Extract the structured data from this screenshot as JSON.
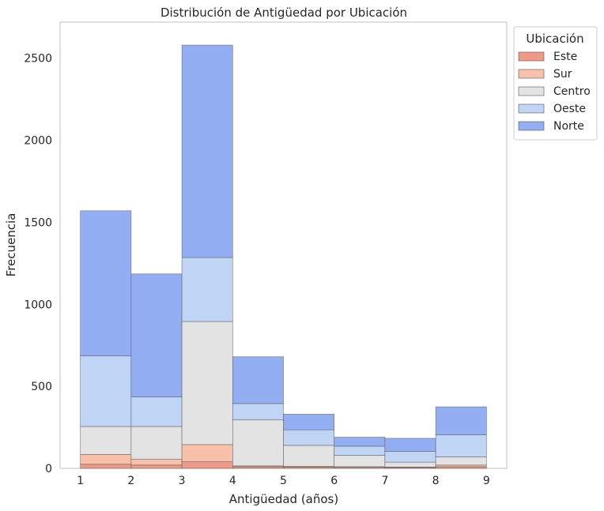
{
  "chart_data": {
    "type": "bar",
    "stacked": true,
    "title": "Distribución de Antigüedad por Ubicación",
    "xlabel": "Antigüedad (años)",
    "ylabel": "Frecuencia",
    "xlim": [
      0.6,
      9.4
    ],
    "ylim": [
      0,
      2720
    ],
    "xticks": [
      "1",
      "2",
      "3",
      "4",
      "5",
      "6",
      "7",
      "8",
      "9"
    ],
    "yticks": [
      "0",
      "500",
      "1000",
      "1500",
      "2000",
      "2500"
    ],
    "grid": false,
    "legend_title": "Ubicación",
    "legend_position": "outside-top-right",
    "bins": [
      [
        1,
        2
      ],
      [
        2,
        3
      ],
      [
        3,
        4
      ],
      [
        4,
        5
      ],
      [
        5,
        6
      ],
      [
        6,
        7
      ],
      [
        7,
        8
      ],
      [
        8,
        9
      ]
    ],
    "series": [
      {
        "name": "Este",
        "color": "#ee9a86",
        "values": [
          25,
          20,
          40,
          10,
          8,
          6,
          5,
          10
        ]
      },
      {
        "name": "Sur",
        "color": "#f7c1aa",
        "values": [
          60,
          35,
          105,
          5,
          4,
          4,
          3,
          10
        ]
      },
      {
        "name": "Centro",
        "color": "#e3e3e3",
        "values": [
          170,
          200,
          750,
          280,
          128,
          70,
          30,
          50
        ]
      },
      {
        "name": "Oeste",
        "color": "#c0d4f5",
        "values": [
          430,
          180,
          390,
          100,
          95,
          55,
          65,
          135
        ]
      },
      {
        "name": "Norte",
        "color": "#93aef3",
        "values": [
          885,
          750,
          1295,
          285,
          95,
          55,
          80,
          170
        ]
      }
    ]
  }
}
